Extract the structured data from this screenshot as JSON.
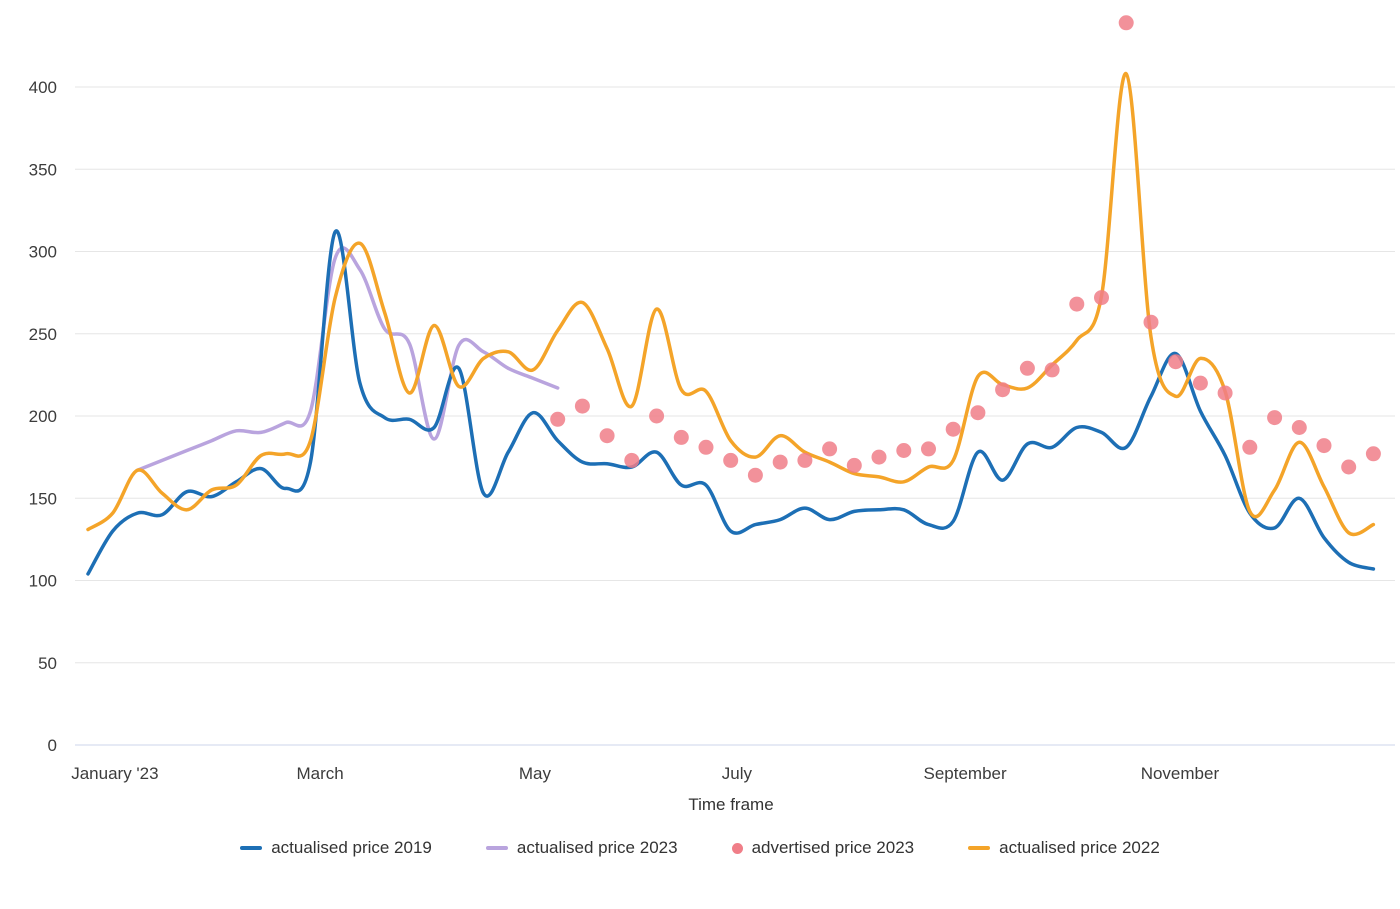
{
  "chart_data": {
    "type": "line",
    "title": "",
    "xlabel": "Time frame",
    "ylabel": "",
    "x_unit": "week index of 2023 (0 = start of January)",
    "ylim": [
      0,
      450
    ],
    "yticks": [
      0,
      50,
      100,
      150,
      200,
      250,
      300,
      350,
      400
    ],
    "xticks": [
      {
        "week": 1.09,
        "label": "January '23"
      },
      {
        "week": 9.39,
        "label": "March"
      },
      {
        "week": 18.08,
        "label": "May"
      },
      {
        "week": 26.25,
        "label": "July"
      },
      {
        "week": 35.48,
        "label": "September"
      },
      {
        "week": 44.17,
        "label": "November"
      }
    ],
    "grid": "horizontal-only",
    "legend_position": "bottom",
    "colors": {
      "grid": "#e6e6e6",
      "axis_line": "#ccd6eb",
      "tick_text": "#3c3c3c"
    },
    "series": [
      {
        "name": "actualised price 2019",
        "type": "line",
        "color": "#1d6fb5",
        "start_week": 0,
        "values": [
          104,
          130,
          141,
          140,
          154,
          151,
          160,
          168,
          156,
          172,
          312,
          220,
          199,
          198,
          193,
          229,
          153,
          178,
          202,
          185,
          172,
          171,
          169,
          178,
          158,
          158,
          130,
          134,
          137,
          144,
          137,
          142,
          143,
          143,
          134,
          136,
          178,
          161,
          183,
          181,
          193,
          190,
          181,
          212,
          238,
          203,
          176,
          141,
          132,
          150,
          126,
          111,
          107
        ]
      },
      {
        "name": "actualised price 2023",
        "type": "line",
        "color": "#b9a4de",
        "start_week": 2,
        "values": [
          167,
          173,
          179,
          185,
          191,
          190,
          196,
          203,
          296,
          289,
          253,
          244,
          186,
          243,
          239,
          229,
          223,
          217
        ]
      },
      {
        "name": "advertised price 2023",
        "type": "scatter",
        "color": "#f07e88",
        "start_week": 19,
        "values": [
          198,
          206,
          188,
          173,
          200,
          187,
          181,
          173,
          164,
          172,
          173,
          180,
          170,
          175,
          179,
          180,
          192,
          202,
          216,
          229,
          228,
          268,
          272,
          439,
          257,
          233,
          220,
          214,
          181,
          199,
          193,
          182,
          169,
          177
        ]
      },
      {
        "name": "actualised price 2022",
        "type": "line",
        "color": "#f4a429",
        "start_week": 0,
        "values": [
          131,
          141,
          167,
          153,
          143,
          155,
          158,
          176,
          177,
          185,
          272,
          305,
          263,
          214,
          255,
          218,
          235,
          239,
          228,
          252,
          269,
          241,
          206,
          265,
          216,
          215,
          185,
          175,
          188,
          178,
          172,
          165,
          163,
          160,
          169,
          173,
          224,
          219,
          217,
          231,
          246,
          273,
          408,
          248,
          212,
          235,
          215,
          142,
          155,
          184,
          157,
          129,
          134
        ]
      }
    ]
  }
}
